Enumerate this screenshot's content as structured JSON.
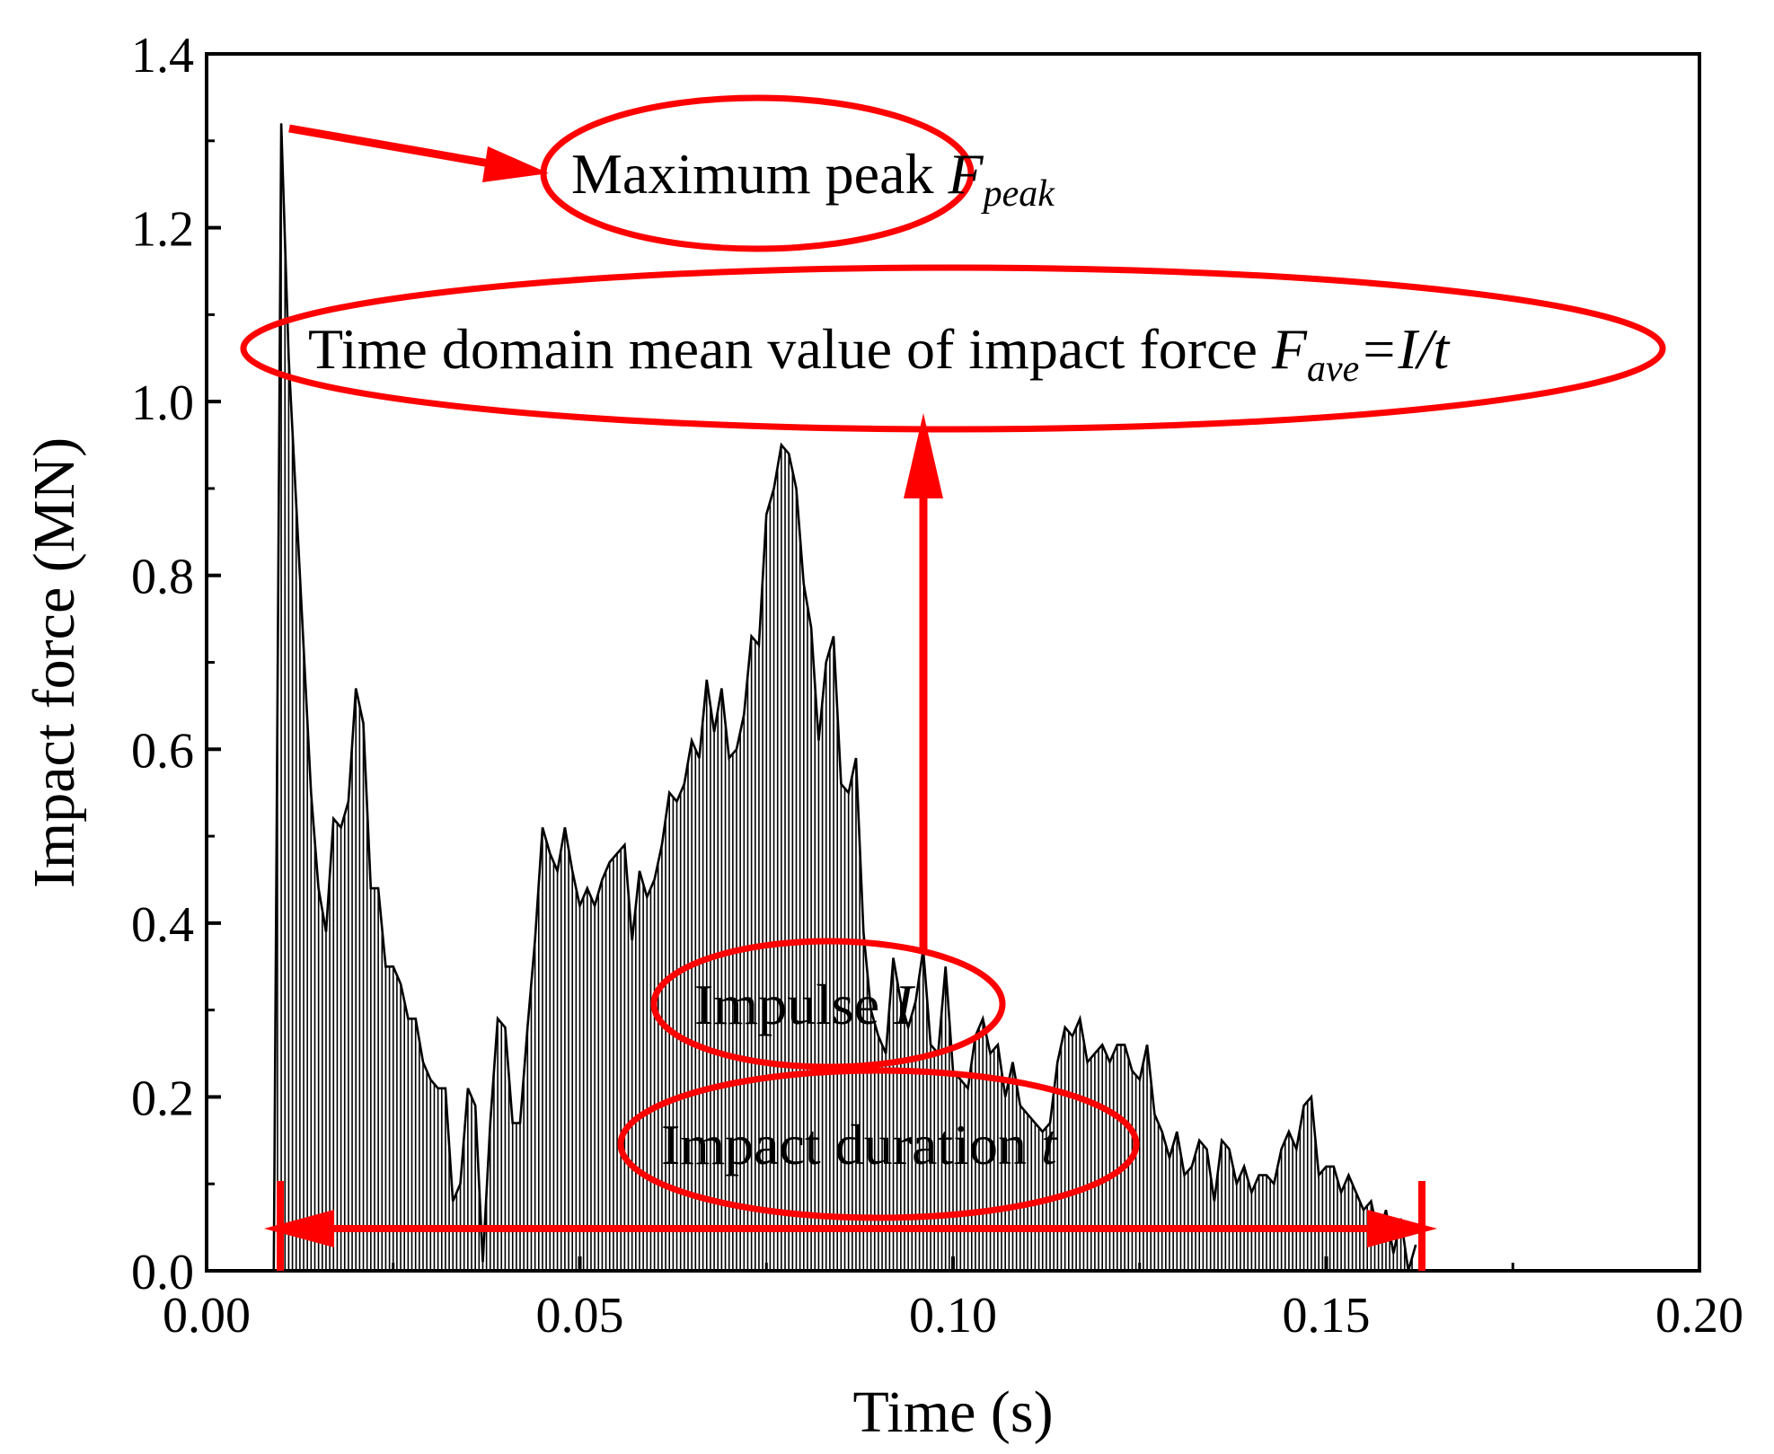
{
  "chart_data": {
    "type": "area",
    "title": "",
    "xlabel": "Time (s)",
    "ylabel": "Impact force (MN)",
    "xlim": [
      0.0,
      0.2
    ],
    "ylim": [
      0.0,
      1.4
    ],
    "x_ticks": [
      "0.00",
      "0.05",
      "0.10",
      "0.15",
      "0.20"
    ],
    "y_ticks": [
      "0.0",
      "0.2",
      "0.4",
      "0.6",
      "0.8",
      "1.0",
      "1.2",
      "1.4"
    ],
    "series": [
      {
        "name": "Impact force",
        "x": [
          0.009,
          0.01,
          0.011,
          0.0125,
          0.014,
          0.015,
          0.016,
          0.017,
          0.018,
          0.019,
          0.02,
          0.021,
          0.022,
          0.023,
          0.024,
          0.025,
          0.026,
          0.027,
          0.028,
          0.029,
          0.03,
          0.031,
          0.032,
          0.033,
          0.034,
          0.035,
          0.036,
          0.037,
          0.038,
          0.039,
          0.04,
          0.041,
          0.042,
          0.043,
          0.044,
          0.045,
          0.046,
          0.047,
          0.048,
          0.049,
          0.05,
          0.051,
          0.052,
          0.053,
          0.054,
          0.055,
          0.056,
          0.057,
          0.058,
          0.059,
          0.06,
          0.061,
          0.062,
          0.063,
          0.064,
          0.065,
          0.066,
          0.067,
          0.068,
          0.069,
          0.07,
          0.071,
          0.072,
          0.073,
          0.074,
          0.075,
          0.076,
          0.077,
          0.078,
          0.079,
          0.08,
          0.081,
          0.082,
          0.083,
          0.084,
          0.085,
          0.086,
          0.087,
          0.088,
          0.089,
          0.09,
          0.091,
          0.092,
          0.093,
          0.094,
          0.095,
          0.096,
          0.097,
          0.098,
          0.099,
          0.1,
          0.101,
          0.102,
          0.103,
          0.104,
          0.105,
          0.106,
          0.107,
          0.108,
          0.109,
          0.11,
          0.111,
          0.112,
          0.113,
          0.114,
          0.115,
          0.116,
          0.117,
          0.118,
          0.119,
          0.12,
          0.121,
          0.122,
          0.123,
          0.124,
          0.125,
          0.126,
          0.127,
          0.128,
          0.129,
          0.13,
          0.131,
          0.132,
          0.133,
          0.134,
          0.135,
          0.136,
          0.137,
          0.138,
          0.139,
          0.14,
          0.141,
          0.142,
          0.143,
          0.144,
          0.145,
          0.146,
          0.147,
          0.148,
          0.149,
          0.15,
          0.151,
          0.152,
          0.153,
          0.154,
          0.155,
          0.156,
          0.157,
          0.158,
          0.159,
          0.16,
          0.161,
          0.162
        ],
        "y": [
          0.0,
          1.32,
          1.05,
          0.8,
          0.55,
          0.44,
          0.39,
          0.52,
          0.51,
          0.54,
          0.67,
          0.63,
          0.44,
          0.44,
          0.35,
          0.35,
          0.33,
          0.29,
          0.29,
          0.24,
          0.22,
          0.21,
          0.21,
          0.08,
          0.1,
          0.21,
          0.19,
          0.01,
          0.17,
          0.29,
          0.28,
          0.17,
          0.17,
          0.28,
          0.38,
          0.51,
          0.48,
          0.46,
          0.51,
          0.46,
          0.42,
          0.44,
          0.42,
          0.45,
          0.47,
          0.48,
          0.49,
          0.38,
          0.46,
          0.43,
          0.45,
          0.49,
          0.55,
          0.54,
          0.56,
          0.61,
          0.59,
          0.68,
          0.62,
          0.67,
          0.59,
          0.6,
          0.64,
          0.73,
          0.72,
          0.87,
          0.9,
          0.95,
          0.94,
          0.9,
          0.79,
          0.74,
          0.61,
          0.7,
          0.73,
          0.56,
          0.55,
          0.59,
          0.39,
          0.3,
          0.27,
          0.25,
          0.36,
          0.31,
          0.28,
          0.31,
          0.37,
          0.26,
          0.25,
          0.35,
          0.23,
          0.22,
          0.21,
          0.27,
          0.29,
          0.25,
          0.26,
          0.2,
          0.24,
          0.19,
          0.18,
          0.17,
          0.16,
          0.17,
          0.24,
          0.28,
          0.27,
          0.29,
          0.24,
          0.25,
          0.26,
          0.24,
          0.26,
          0.26,
          0.23,
          0.22,
          0.26,
          0.18,
          0.16,
          0.13,
          0.16,
          0.11,
          0.12,
          0.15,
          0.14,
          0.08,
          0.15,
          0.14,
          0.1,
          0.12,
          0.09,
          0.11,
          0.11,
          0.1,
          0.14,
          0.16,
          0.14,
          0.19,
          0.2,
          0.11,
          0.12,
          0.12,
          0.09,
          0.11,
          0.09,
          0.07,
          0.08,
          0.04,
          0.07,
          0.02,
          0.06,
          0.0,
          0.03
        ]
      }
    ],
    "annotations": {
      "peak": {
        "text": "Maximum peak ",
        "symbol": "F",
        "subscript": "peak"
      },
      "mean": {
        "text": "Time domain mean value of impact force ",
        "symbol": "F",
        "subscript": "ave",
        "suffix": "=I/t"
      },
      "impulse": {
        "text": "Impulse ",
        "symbol": "I"
      },
      "duration": {
        "text": "Impact duration ",
        "symbol": "t"
      }
    },
    "impact_window": [
      0.009,
      0.163
    ],
    "annotation_color": "#ff0000",
    "line_color": "#000000"
  }
}
